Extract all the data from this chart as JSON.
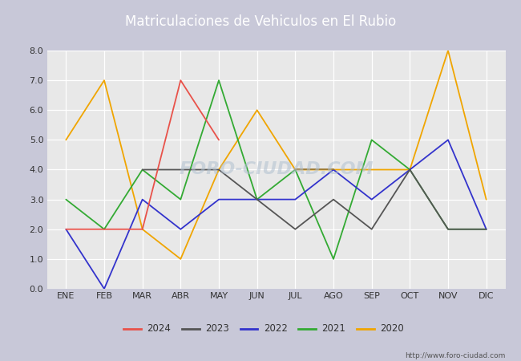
{
  "title": "Matriculaciones de Vehiculos en El Rubio",
  "months": [
    "ENE",
    "FEB",
    "MAR",
    "ABR",
    "MAY",
    "JUN",
    "JUL",
    "AGO",
    "SEP",
    "OCT",
    "NOV",
    "DIC"
  ],
  "series": {
    "2024": {
      "values": [
        2,
        2,
        2,
        7,
        5,
        null,
        null,
        null,
        null,
        null,
        null,
        null
      ],
      "color": "#e8524a"
    },
    "2023": {
      "values": [
        null,
        null,
        4,
        4,
        4,
        3,
        2,
        3,
        2,
        4,
        2,
        2
      ],
      "color": "#555555"
    },
    "2022": {
      "values": [
        2,
        0,
        3,
        2,
        3,
        3,
        3,
        4,
        3,
        4,
        5,
        2
      ],
      "color": "#3333cc"
    },
    "2021": {
      "values": [
        3,
        2,
        4,
        3,
        7,
        3,
        4,
        1,
        5,
        4,
        2,
        2
      ],
      "color": "#33aa33"
    },
    "2020": {
      "values": [
        5,
        7,
        2,
        1,
        4,
        6,
        4,
        4,
        4,
        4,
        8,
        3
      ],
      "color": "#f0a500"
    }
  },
  "ylim": [
    0.0,
    8.0
  ],
  "yticks": [
    0.0,
    1.0,
    2.0,
    3.0,
    4.0,
    5.0,
    6.0,
    7.0,
    8.0
  ],
  "title_bg_color": "#5566bb",
  "title_text_color": "#ffffff",
  "title_fontsize": 12,
  "plot_bg_color": "#e8e8e8",
  "outer_bg_color": "#c8c8d8",
  "grid_color": "#ffffff",
  "watermark_text": "FORO-CIUDAD.COM",
  "watermark_color": "#b0c0d0",
  "url_text": "http://www.foro-ciudad.com",
  "legend_years": [
    "2024",
    "2023",
    "2022",
    "2021",
    "2020"
  ],
  "legend_colors": [
    "#e8524a",
    "#555555",
    "#3333cc",
    "#33aa33",
    "#f0a500"
  ]
}
